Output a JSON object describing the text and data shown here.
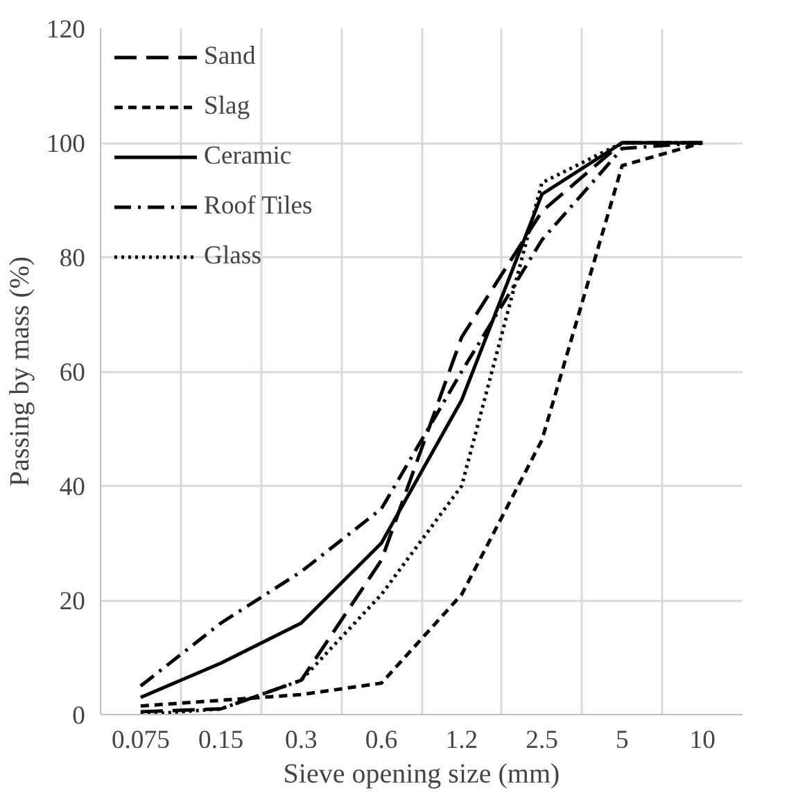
{
  "chart_data": {
    "type": "line",
    "xlabel": "Sieve opening size (mm)",
    "ylabel": "Passing by mass (%)",
    "categories": [
      "0.075",
      "0.15",
      "0.3",
      "0.6",
      "1.2",
      "2.5",
      "5",
      "10"
    ],
    "series": [
      {
        "name": "Sand",
        "color": "#000000",
        "line_style": "longdash",
        "values": [
          0.5,
          1,
          6,
          27,
          66,
          88,
          100,
          100
        ]
      },
      {
        "name": "Slag",
        "color": "#000000",
        "line_style": "dashed",
        "values": [
          1.5,
          2.5,
          3.5,
          5.5,
          21,
          48,
          96,
          100
        ]
      },
      {
        "name": "Ceramic",
        "color": "#000000",
        "line_style": "solid",
        "values": [
          3,
          9,
          16,
          30,
          55,
          91,
          100,
          100
        ]
      },
      {
        "name": "Roof Tiles",
        "color": "#000000",
        "line_style": "dashdot",
        "values": [
          5,
          16,
          25,
          36,
          60,
          83,
          99,
          100
        ]
      },
      {
        "name": "Glass",
        "color": "#000000",
        "line_style": "dotted",
        "values": [
          0,
          1,
          6,
          21,
          40,
          93,
          100,
          100
        ]
      }
    ],
    "ylim": [
      0,
      120
    ],
    "yticks": [
      0,
      20,
      40,
      60,
      80,
      100,
      120
    ],
    "grid": true,
    "legend": "top left",
    "marker": "none"
  }
}
